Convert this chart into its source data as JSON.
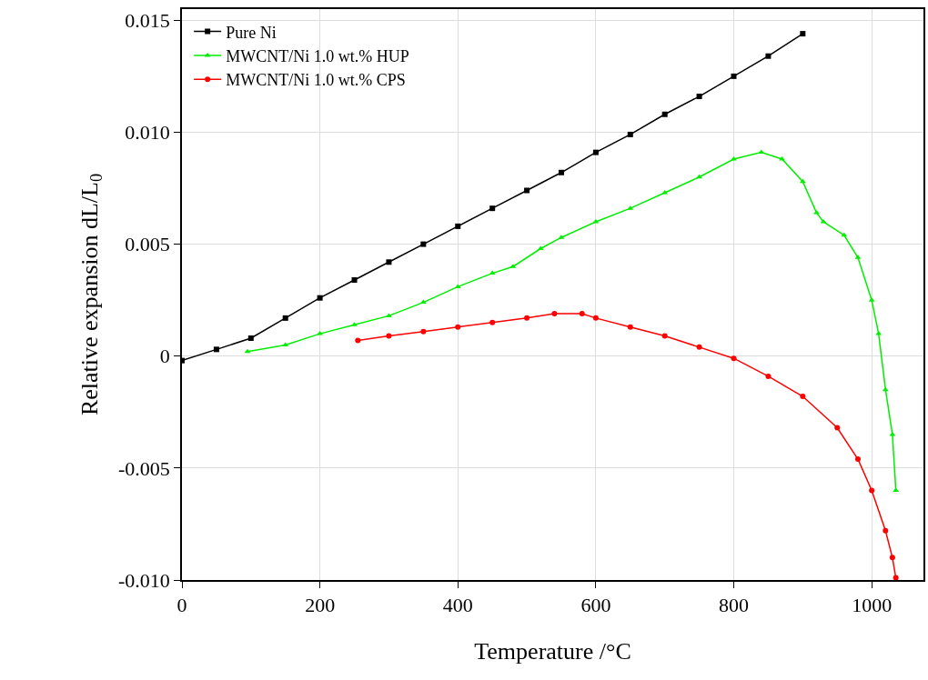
{
  "chart_data": {
    "type": "line",
    "xlabel": "Temperature /°C",
    "ylabel": "Relative expansion dL/L$_{0}$",
    "xlim": [
      0,
      1075
    ],
    "xticks": [
      0,
      200,
      400,
      600,
      800,
      1000
    ],
    "ylim": [
      -0.01,
      0.0155
    ],
    "yticks": [
      {
        "value": -0.01,
        "label": "-0.010"
      },
      {
        "value": -0.005,
        "label": "-0.005"
      },
      0,
      {
        "value": 0.005,
        "label": "0.005"
      },
      {
        "value": 0.01,
        "label": "0.010"
      },
      {
        "value": 0.015,
        "label": "0.015"
      }
    ],
    "grid": true,
    "legend": "top left",
    "series": [
      {
        "name": "Pure Ni",
        "color": "#000000",
        "marker": "square",
        "x": [
          0,
          50,
          100,
          150,
          200,
          250,
          300,
          350,
          400,
          450,
          500,
          550,
          600,
          650,
          700,
          750,
          800,
          850,
          900
        ],
        "values": [
          -0.0002,
          0.0003,
          0.0008,
          0.0017,
          0.0026,
          0.0034,
          0.0042,
          0.005,
          0.0058,
          0.0066,
          0.0074,
          0.0082,
          0.0091,
          0.0099,
          0.0108,
          0.0116,
          0.0125,
          0.0134,
          0.0144
        ]
      },
      {
        "name": "MWCNT/Ni 1.0 wt.% HUP",
        "color": "#00ee00",
        "marker": "triangle",
        "x": [
          95,
          150,
          200,
          250,
          300,
          350,
          400,
          450,
          480,
          520,
          550,
          600,
          650,
          700,
          750,
          800,
          840,
          870,
          900,
          920,
          930,
          960,
          980,
          1000,
          1010,
          1020,
          1030,
          1035
        ],
        "values": [
          0.0002,
          0.0005,
          0.001,
          0.0014,
          0.0018,
          0.0024,
          0.0031,
          0.0037,
          0.004,
          0.0048,
          0.0053,
          0.006,
          0.0066,
          0.0073,
          0.008,
          0.0088,
          0.0091,
          0.0088,
          0.0078,
          0.0064,
          0.006,
          0.0054,
          0.0044,
          0.0025,
          0.001,
          -0.0015,
          -0.0035,
          -0.006
        ]
      },
      {
        "name": "MWCNT/Ni 1.0 wt.% CPS",
        "color": "#ff0000",
        "marker": "circle",
        "x": [
          255,
          300,
          350,
          400,
          450,
          500,
          540,
          580,
          600,
          650,
          700,
          750,
          800,
          850,
          900,
          950,
          980,
          1000,
          1020,
          1030,
          1035
        ],
        "values": [
          0.0007,
          0.0009,
          0.0011,
          0.0013,
          0.0015,
          0.0017,
          0.0019,
          0.0019,
          0.0017,
          0.0013,
          0.0009,
          0.0004,
          -0.0001,
          -0.0009,
          -0.0018,
          -0.0032,
          -0.0046,
          -0.006,
          -0.0078,
          -0.009,
          -0.0099
        ]
      }
    ]
  }
}
